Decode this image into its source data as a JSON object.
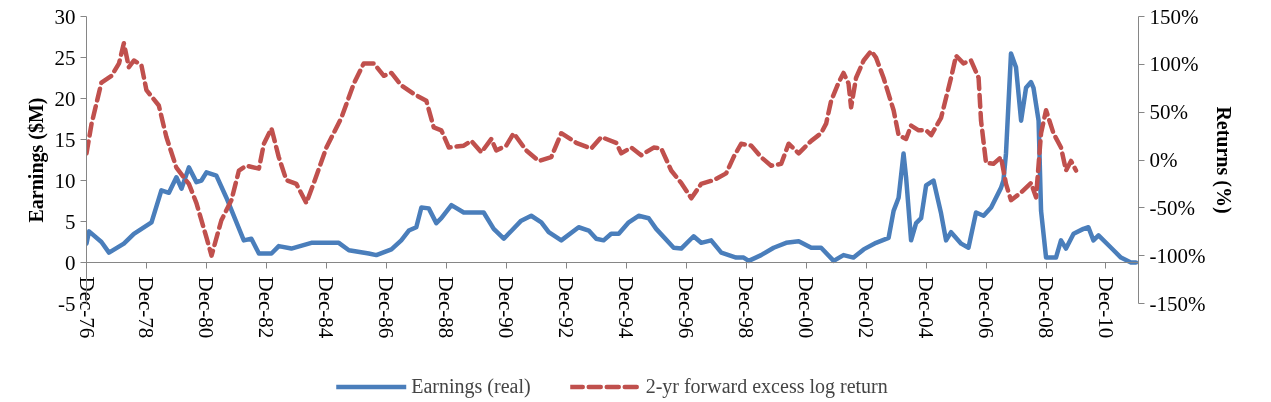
{
  "chart_data": {
    "type": "line",
    "ylabel": "Earnings ($M)",
    "y2label": "Returns (%)",
    "xlim": [
      "1976-12",
      "2012-01"
    ],
    "xticks": [
      {
        "value": "1976-12",
        "label": "Dec-76"
      },
      {
        "value": "1978-12",
        "label": "Dec-78"
      },
      {
        "value": "1980-12",
        "label": "Dec-80"
      },
      {
        "value": "1982-12",
        "label": "Dec-82"
      },
      {
        "value": "1984-12",
        "label": "Dec-84"
      },
      {
        "value": "1986-12",
        "label": "Dec-86"
      },
      {
        "value": "1988-12",
        "label": "Dec-88"
      },
      {
        "value": "1990-12",
        "label": "Dec-90"
      },
      {
        "value": "1992-12",
        "label": "Dec-92"
      },
      {
        "value": "1994-12",
        "label": "Dec-94"
      },
      {
        "value": "1996-12",
        "label": "Dec-96"
      },
      {
        "value": "1998-12",
        "label": "Dec-98"
      },
      {
        "value": "2000-12",
        "label": "Dec-00"
      },
      {
        "value": "2002-12",
        "label": "Dec-02"
      },
      {
        "value": "2004-12",
        "label": "Dec-04"
      },
      {
        "value": "2006-12",
        "label": "Dec-06"
      },
      {
        "value": "2008-12",
        "label": "Dec-08"
      },
      {
        "value": "2010-12",
        "label": "Dec-10"
      }
    ],
    "ylim": [
      -5,
      30
    ],
    "yticks": [
      -5,
      0,
      5,
      10,
      15,
      20,
      25,
      30
    ],
    "y2lim": [
      -150,
      150
    ],
    "y2ticks": [
      {
        "value": -150,
        "label": "-150%"
      },
      {
        "value": -100,
        "label": "-100%"
      },
      {
        "value": -50,
        "label": "-50%"
      },
      {
        "value": 0,
        "label": "0%"
      },
      {
        "value": 50,
        "label": "50%"
      },
      {
        "value": 100,
        "label": "100%"
      },
      {
        "value": 150,
        "label": "150%"
      }
    ],
    "legend": "bottom",
    "series": [
      {
        "name": "Earnings (real)",
        "color": "#4a7ebb",
        "line_style": "solid",
        "x": [
          "1976-12",
          "1977-01",
          "1977-06",
          "1977-09",
          "1978-03",
          "1978-07",
          "1979-02",
          "1979-06",
          "1979-09",
          "1979-12",
          "1980-02",
          "1980-05",
          "1980-08",
          "1980-10",
          "1980-12",
          "1981-04",
          "1981-08",
          "1982-03",
          "1982-06",
          "1982-09",
          "1983-02",
          "1983-05",
          "1983-10",
          "1984-06",
          "1984-10",
          "1985-05",
          "1985-09",
          "1986-05",
          "1986-08",
          "1987-02",
          "1987-06",
          "1987-09",
          "1987-12",
          "1988-02",
          "1988-05",
          "1988-08",
          "1988-10",
          "1989-02",
          "1989-07",
          "1990-03",
          "1990-07",
          "1990-11",
          "1991-06",
          "1991-10",
          "1992-02",
          "1992-05",
          "1992-10",
          "1993-05",
          "1993-09",
          "1993-12",
          "1994-03",
          "1994-06",
          "1994-09",
          "1995-01",
          "1995-05",
          "1995-09",
          "1995-12",
          "1996-07",
          "1996-10",
          "1997-03",
          "1997-06",
          "1997-10",
          "1998-02",
          "1998-08",
          "1998-11",
          "1999-01",
          "1999-06",
          "1999-11",
          "2000-04",
          "2000-09",
          "2001-02",
          "2001-06",
          "2001-11",
          "2002-03",
          "2002-07",
          "2002-11",
          "2003-04",
          "2003-09",
          "2003-11",
          "2004-01",
          "2004-03",
          "2004-04",
          "2004-06",
          "2004-08",
          "2004-10",
          "2004-12",
          "2005-03",
          "2005-06",
          "2005-08",
          "2005-10",
          "2006-02",
          "2006-05",
          "2006-08",
          "2006-11",
          "2007-02",
          "2007-06",
          "2007-07",
          "2007-08",
          "2007-10",
          "2007-12",
          "2008-02",
          "2008-04",
          "2008-06",
          "2008-07",
          "2008-09",
          "2008-10",
          "2008-12",
          "2009-04",
          "2009-06",
          "2009-08",
          "2009-11",
          "2010-03",
          "2010-05",
          "2010-07",
          "2010-09",
          "2011-02",
          "2011-06",
          "2011-10",
          "2011-12"
        ],
        "values": [
          2.3,
          3.8,
          2.5,
          1.2,
          2.3,
          3.5,
          4.9,
          8.8,
          8.5,
          10.4,
          9.0,
          11.6,
          9.8,
          10.0,
          11.0,
          10.6,
          7.9,
          2.7,
          2.9,
          1.1,
          1.1,
          2.0,
          1.7,
          2.4,
          2.4,
          2.4,
          1.5,
          1.1,
          0.9,
          1.6,
          2.7,
          3.9,
          4.3,
          6.7,
          6.6,
          4.8,
          5.4,
          7.0,
          6.1,
          6.1,
          4.1,
          2.9,
          5.1,
          5.7,
          4.9,
          3.7,
          2.7,
          4.3,
          3.9,
          2.9,
          2.7,
          3.5,
          3.5,
          4.9,
          5.7,
          5.4,
          4.1,
          1.8,
          1.7,
          3.2,
          2.4,
          2.7,
          1.2,
          0.6,
          0.6,
          0.2,
          0.9,
          1.8,
          2.4,
          2.6,
          1.8,
          1.8,
          0.2,
          0.9,
          0.6,
          1.6,
          2.4,
          3.0,
          6.3,
          7.9,
          13.3,
          10.4,
          2.7,
          4.8,
          5.4,
          9.4,
          10.0,
          6.0,
          2.7,
          3.7,
          2.3,
          1.8,
          6.1,
          5.7,
          6.7,
          9.1,
          10.0,
          13.3,
          25.5,
          23.8,
          17.3,
          21.3,
          22.0,
          21.3,
          17.3,
          6.3,
          0.6,
          0.6,
          2.7,
          1.7,
          3.5,
          4.1,
          4.3,
          2.7,
          3.3,
          1.8,
          0.6,
          0.0,
          0.0
        ]
      },
      {
        "name": "2-yr forward excess log return",
        "color": "#c0504d",
        "line_style": "dashed",
        "axis": "y2",
        "x": [
          "1976-12",
          "1977-02",
          "1977-06",
          "1977-10",
          "1978-01",
          "1978-03",
          "1978-05",
          "1978-07",
          "1978-10",
          "1978-12",
          "1979-05",
          "1979-08",
          "1979-12",
          "1980-05",
          "1980-08",
          "1980-12",
          "1981-02",
          "1981-06",
          "1981-10",
          "1982-01",
          "1982-04",
          "1982-09",
          "1982-11",
          "1983-02",
          "1983-05",
          "1983-08",
          "1983-12",
          "1984-04",
          "1984-07",
          "1984-12",
          "1985-06",
          "1985-11",
          "1986-03",
          "1986-07",
          "1986-11",
          "1987-02",
          "1987-06",
          "1987-11",
          "1988-04",
          "1988-07",
          "1988-10",
          "1989-01",
          "1989-07",
          "1989-10",
          "1990-02",
          "1990-06",
          "1990-08",
          "1990-12",
          "1991-03",
          "1991-08",
          "1992-01",
          "1992-06",
          "1992-10",
          "1993-04",
          "1993-10",
          "1994-02",
          "1994-08",
          "1994-10",
          "1995-02",
          "1995-06",
          "1995-11",
          "1996-02",
          "1996-06",
          "1996-10",
          "1997-02",
          "1997-06",
          "1997-11",
          "1998-04",
          "1998-07",
          "1998-10",
          "1999-02",
          "1999-06",
          "1999-10",
          "2000-02",
          "2000-05",
          "2000-09",
          "2001-02",
          "2001-06",
          "2001-08",
          "2001-10",
          "2002-01",
          "2002-03",
          "2002-05",
          "2002-06",
          "2002-08",
          "2002-11",
          "2003-02",
          "2003-04",
          "2003-07",
          "2003-11",
          "2004-01",
          "2004-04",
          "2004-06",
          "2004-09",
          "2004-12",
          "2005-02",
          "2005-06",
          "2005-10",
          "2005-12",
          "2006-03",
          "2006-06",
          "2006-09",
          "2006-10",
          "2006-12",
          "2007-03",
          "2007-06",
          "2007-08",
          "2007-10",
          "2008-02",
          "2008-06",
          "2008-08",
          "2008-10",
          "2008-12",
          "2009-03",
          "2009-06",
          "2009-08",
          "2009-10",
          "2009-12"
        ],
        "values": [
          7,
          38,
          81,
          88,
          101,
          122,
          97,
          104,
          99,
          73,
          57,
          24,
          -8,
          -25,
          -45,
          -81,
          -100,
          -63,
          -42,
          -11,
          -6,
          -9,
          17,
          33,
          3,
          -21,
          -25,
          -45,
          -24,
          13,
          44,
          80,
          101,
          101,
          88,
          91,
          78,
          69,
          62,
          34,
          31,
          13,
          15,
          20,
          8,
          22,
          10,
          15,
          28,
          10,
          -1,
          3,
          28,
          18,
          12,
          24,
          18,
          7,
          13,
          5,
          13,
          12,
          -11,
          -24,
          -40,
          -25,
          -21,
          -14,
          3,
          17,
          15,
          3,
          -6,
          -4,
          17,
          7,
          20,
          28,
          38,
          62,
          81,
          91,
          80,
          55,
          86,
          104,
          114,
          107,
          86,
          52,
          26,
          22,
          36,
          31,
          31,
          26,
          44,
          86,
          109,
          101,
          104,
          86,
          41,
          -3,
          -4,
          3,
          -25,
          -42,
          -34,
          -24,
          -39,
          28,
          52,
          28,
          13,
          -11,
          -1,
          -11
        ]
      }
    ]
  }
}
